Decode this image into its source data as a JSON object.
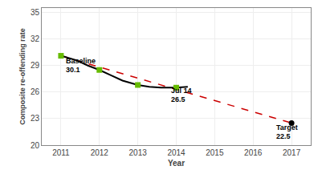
{
  "chart_data": {
    "type": "line",
    "xlabel": "Year",
    "ylabel": "Composite re-offending rate",
    "xlim": [
      2010.5,
      2017.5
    ],
    "ylim": [
      20,
      35.5
    ],
    "xticks": [
      2011,
      2012,
      2013,
      2014,
      2015,
      2016,
      2017
    ],
    "yticks": [
      20,
      23,
      26,
      29,
      32,
      35
    ],
    "grid": true,
    "series": [
      {
        "type": "line",
        "line_style": "dashed",
        "color": "#cc0000",
        "x": [
          2011,
          2017
        ],
        "values": [
          30.1,
          22.5
        ]
      },
      {
        "type": "line",
        "line_style": "solid",
        "color": "#000000",
        "x": [
          2011,
          2011.4,
          2011.7,
          2012,
          2012.3,
          2012.6,
          2013,
          2013.3,
          2013.6,
          2014,
          2014.3
        ],
        "values": [
          30.1,
          29.6,
          29.0,
          28.5,
          27.9,
          27.3,
          26.8,
          26.6,
          26.5,
          26.5,
          26.6
        ]
      },
      {
        "type": "scatter",
        "marker": "square",
        "color": "#66bb00",
        "x": [
          2011,
          2012,
          2013,
          2014
        ],
        "values": [
          30.1,
          28.5,
          26.8,
          26.5
        ]
      },
      {
        "type": "scatter",
        "marker": "circle",
        "color": "#000000",
        "x": [
          2017
        ],
        "values": [
          22.5
        ]
      }
    ],
    "annotations": [
      {
        "text": "Baseline",
        "x": 2011.08,
        "y": 28.85
      },
      {
        "text": "30.1",
        "x": 2011.08,
        "y": 27.9
      },
      {
        "text": "Jul 14",
        "x": 2013.82,
        "y": 25.5
      },
      {
        "text": "26.5",
        "x": 2013.82,
        "y": 24.55
      },
      {
        "text": "Target",
        "x": 2016.55,
        "y": 21.35
      },
      {
        "text": "22.5",
        "x": 2016.55,
        "y": 20.4
      }
    ]
  }
}
